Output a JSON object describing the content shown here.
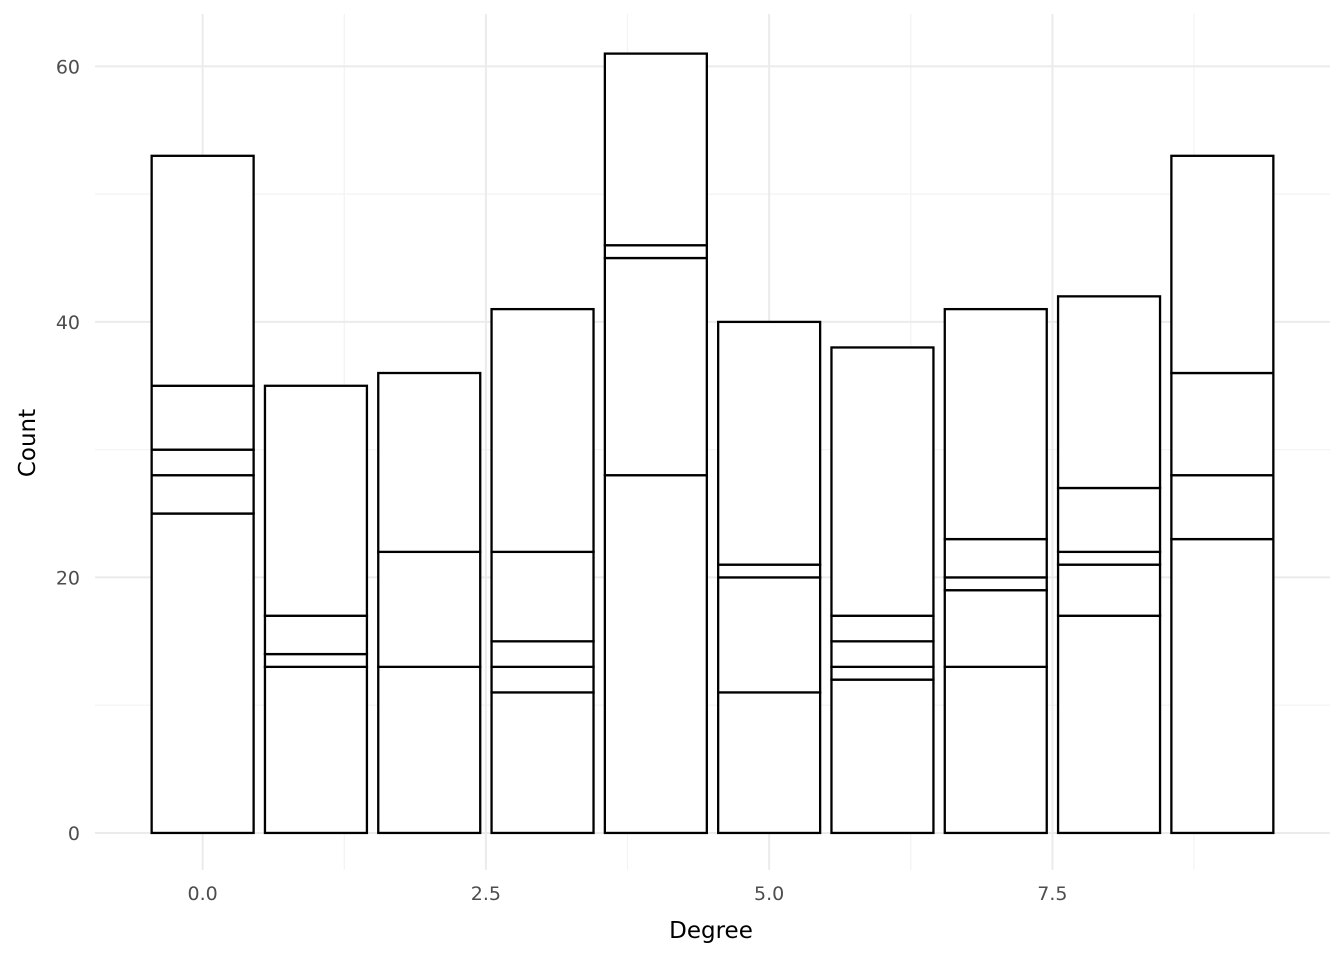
{
  "chart_data": {
    "type": "bar",
    "stacked": true,
    "xlabel": "Degree",
    "ylabel": "Count",
    "x": [
      0,
      1,
      2,
      3,
      4,
      5,
      6,
      7,
      8,
      9
    ],
    "totals": [
      53,
      35,
      36,
      41,
      61,
      40,
      38,
      41,
      42,
      53
    ],
    "segment_boundaries": [
      [
        25,
        28,
        30,
        35,
        53
      ],
      [
        13,
        14,
        17,
        35
      ],
      [
        13,
        22,
        36
      ],
      [
        11,
        13,
        15,
        22,
        41
      ],
      [
        28,
        45,
        46,
        61
      ],
      [
        11,
        20,
        21,
        40
      ],
      [
        12,
        13,
        15,
        17,
        38
      ],
      [
        13,
        19,
        20,
        23,
        41
      ],
      [
        17,
        21,
        22,
        27,
        42
      ],
      [
        23,
        28,
        36,
        53
      ]
    ],
    "xlim": [
      -0.95,
      9.95
    ],
    "ylim": [
      -2.9,
      64.1
    ],
    "x_major_ticks": [
      0,
      2.5,
      5,
      7.5
    ],
    "x_tick_labels": [
      "0.0",
      "2.5",
      "5.0",
      "7.5"
    ],
    "x_minor_ticks": [
      1.25,
      3.75,
      6.25,
      8.75
    ],
    "y_major_ticks": [
      0,
      20,
      40,
      60
    ],
    "y_tick_labels": [
      "0",
      "20",
      "40",
      "60"
    ],
    "y_minor_ticks": [
      10,
      30,
      50
    ],
    "bar_width": 0.9,
    "grid": true,
    "legend": "none",
    "colors": {
      "fill": "#ffffff",
      "outline": "#000000",
      "grid": "#ebebeb",
      "tick_text": "#4d4d4d"
    }
  }
}
